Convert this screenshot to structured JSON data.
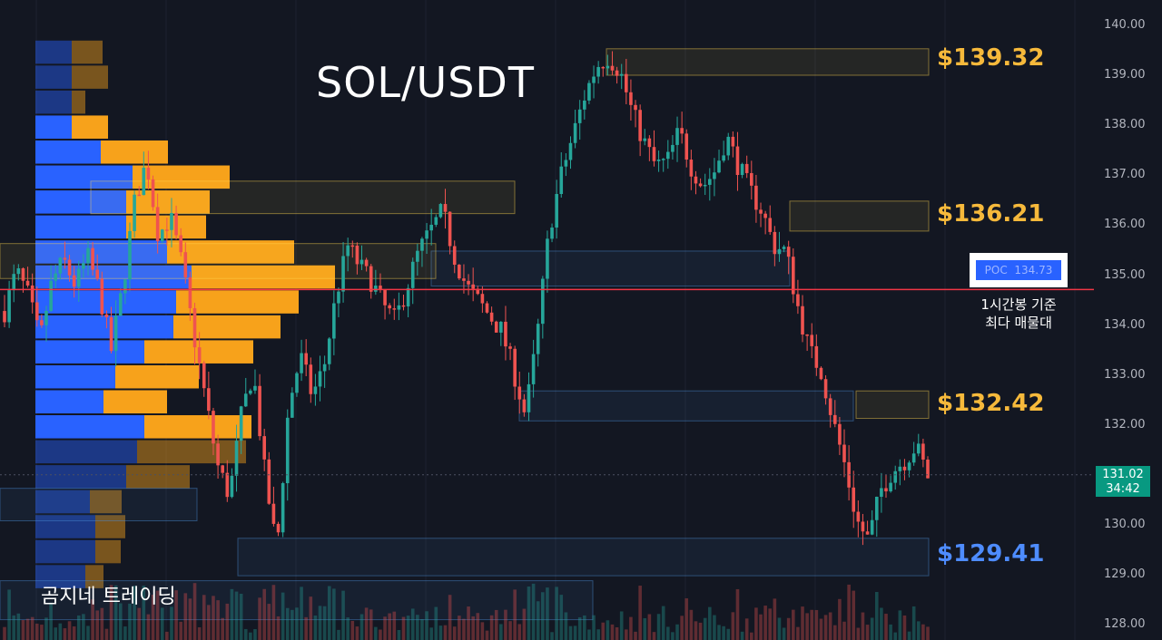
{
  "title": "SOL/USDT",
  "brand": "곰지네 트레이딩",
  "poc": {
    "label": "POC",
    "value": "134.73",
    "note_line1": "1시간봉 기준",
    "note_line2": "최다 매물대",
    "price": 134.73
  },
  "current": {
    "price_label": "131.02",
    "timer": "34:42",
    "price": 131.02
  },
  "levels": [
    {
      "label": "$139.32",
      "price": 139.32,
      "color": "#f6b93b"
    },
    {
      "label": "$136.21",
      "price": 136.21,
      "color": "#f6b93b"
    },
    {
      "label": "$132.42",
      "price": 132.42,
      "color": "#f6b93b"
    },
    {
      "label": "$129.41",
      "price": 129.41,
      "color": "#4e8cff"
    }
  ],
  "colors": {
    "up": "#26a69a",
    "down": "#ef5350",
    "poc_line": "#f23645",
    "vp_buy": "#2962ff",
    "vp_sell": "#f7a21b"
  },
  "chart_data": {
    "type": "candlestick",
    "title": "SOL/USDT",
    "ylim": [
      128,
      140
    ],
    "y_ticks": [
      "140.00",
      "139.00",
      "138.00",
      "137.00",
      "136.00",
      "135.00",
      "134.00",
      "133.00",
      "132.00",
      "131.00",
      "130.00",
      "129.00",
      "128.00"
    ],
    "close_path": [
      134.3,
      135.1,
      134.6,
      133.7,
      134.9,
      135.3,
      134.8,
      135.4,
      134.7,
      133.5,
      134.8,
      136.5,
      137.3,
      135.8,
      136.2,
      135.2,
      133.8,
      132.5,
      131.2,
      130.6,
      132.2,
      133.1,
      131.0,
      129.5,
      132.4,
      133.4,
      132.6,
      133.2,
      134.6,
      135.6,
      135.2,
      134.9,
      134.4,
      134.1,
      134.8,
      135.5,
      135.9,
      136.3,
      135.4,
      134.8,
      134.5,
      134.2,
      133.9,
      133.1,
      132.2,
      133.8,
      135.9,
      137.0,
      137.8,
      138.6,
      139.2,
      139.4,
      139.1,
      138.3,
      137.7,
      137.2,
      137.3,
      137.9,
      137.2,
      136.8,
      137.1,
      137.8,
      137.2,
      136.7,
      136.3,
      135.6,
      135.5,
      134.4,
      133.5,
      133.1,
      132.1,
      131.2,
      130.1,
      129.7,
      130.7,
      131.1,
      131.3,
      131.6,
      131.0
    ],
    "volume_profile": {
      "price_levels": [
        139.5,
        139.0,
        138.5,
        138.0,
        137.5,
        137.0,
        136.5,
        136.0,
        135.5,
        135.0,
        134.5,
        134.0,
        133.5,
        133.0,
        132.5,
        132.0,
        131.5,
        131.0,
        130.5,
        130.0,
        129.5,
        129.0
      ],
      "buy": [
        40,
        40,
        40,
        40,
        72,
        107,
        100,
        100,
        145,
        172,
        155,
        152,
        120,
        88,
        75,
        120,
        112,
        100,
        60,
        66,
        66,
        55
      ],
      "sell": [
        34,
        40,
        15,
        40,
        74,
        107,
        92,
        88,
        140,
        158,
        135,
        118,
        120,
        92,
        70,
        118,
        120,
        70,
        35,
        33,
        28,
        20
      ],
      "poc": 134.73
    },
    "levels": [
      139.32,
      136.21,
      132.42,
      129.41
    ]
  }
}
